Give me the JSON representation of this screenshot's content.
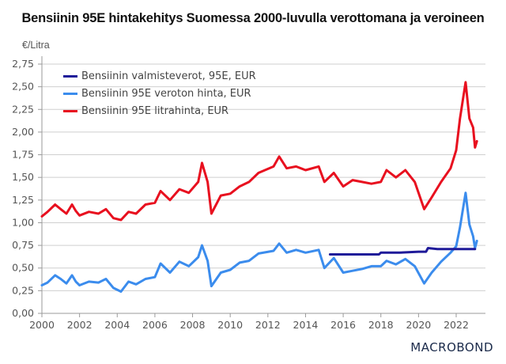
{
  "chart_data": {
    "type": "line",
    "title": "Bensiinin 95E hintakehitys Suomessa 2000-luvulla verottomana ja veroineen",
    "ylabel": "€/Litra",
    "xlabel": "",
    "xlim": [
      2000,
      2023.6
    ],
    "ylim": [
      0,
      2.75
    ],
    "yticks": [
      "0,00",
      "0,25",
      "0,50",
      "0,75",
      "1,00",
      "1,25",
      "1,50",
      "1,75",
      "2,00",
      "2,25",
      "2,50",
      "2,75"
    ],
    "ytick_values": [
      0,
      0.25,
      0.5,
      0.75,
      1.0,
      1.25,
      1.5,
      1.75,
      2.0,
      2.25,
      2.5,
      2.75
    ],
    "xticks": [
      "2000",
      "2002",
      "2004",
      "2006",
      "2008",
      "2010",
      "2012",
      "2014",
      "2016",
      "2018",
      "2020",
      "2022"
    ],
    "xtick_values": [
      2000,
      2002,
      2004,
      2006,
      2008,
      2010,
      2012,
      2014,
      2016,
      2018,
      2020,
      2022
    ],
    "grid": true,
    "legend_position": "top-left",
    "series": [
      {
        "name": "Bensiinin valmisteverot, 95E, EUR",
        "color": "#1f1a99",
        "x": [
          2015.3,
          2016.0,
          2017.0,
          2017.9,
          2018.0,
          2019.0,
          2020.0,
          2020.4,
          2020.5,
          2021.0,
          2022.0,
          2023.0
        ],
        "y": [
          0.65,
          0.65,
          0.65,
          0.65,
          0.67,
          0.67,
          0.68,
          0.68,
          0.72,
          0.71,
          0.71,
          0.71
        ]
      },
      {
        "name": "Bensiinin 95E veroton hinta, EUR",
        "color": "#3b8ced",
        "x": [
          2000.0,
          2000.3,
          2000.7,
          2001.0,
          2001.3,
          2001.6,
          2001.8,
          2002.0,
          2002.5,
          2003.0,
          2003.4,
          2003.8,
          2004.2,
          2004.6,
          2005.0,
          2005.5,
          2006.0,
          2006.3,
          2006.8,
          2007.3,
          2007.8,
          2008.3,
          2008.5,
          2008.8,
          2009.0,
          2009.5,
          2010.0,
          2010.5,
          2011.0,
          2011.5,
          2012.3,
          2012.6,
          2013.0,
          2013.5,
          2014.0,
          2014.7,
          2015.0,
          2015.5,
          2016.0,
          2016.5,
          2017.0,
          2017.5,
          2018.0,
          2018.3,
          2018.8,
          2019.3,
          2019.8,
          2020.3,
          2020.7,
          2021.2,
          2021.7,
          2022.0,
          2022.2,
          2022.5,
          2022.7,
          2022.9,
          2023.0,
          2023.1
        ],
        "y": [
          0.31,
          0.34,
          0.42,
          0.38,
          0.33,
          0.42,
          0.35,
          0.31,
          0.35,
          0.34,
          0.38,
          0.28,
          0.24,
          0.35,
          0.32,
          0.38,
          0.4,
          0.55,
          0.45,
          0.57,
          0.52,
          0.62,
          0.75,
          0.58,
          0.3,
          0.45,
          0.48,
          0.56,
          0.58,
          0.66,
          0.69,
          0.77,
          0.67,
          0.7,
          0.67,
          0.7,
          0.5,
          0.61,
          0.45,
          0.47,
          0.49,
          0.52,
          0.52,
          0.58,
          0.54,
          0.6,
          0.52,
          0.33,
          0.45,
          0.57,
          0.67,
          0.74,
          0.95,
          1.33,
          0.98,
          0.85,
          0.72,
          0.8
        ]
      },
      {
        "name": "Bensiinin 95E litrahinta, EUR",
        "color": "#e8101f",
        "x": [
          2000.0,
          2000.3,
          2000.7,
          2001.0,
          2001.3,
          2001.6,
          2001.8,
          2002.0,
          2002.5,
          2003.0,
          2003.4,
          2003.8,
          2004.2,
          2004.6,
          2005.0,
          2005.5,
          2006.0,
          2006.3,
          2006.8,
          2007.3,
          2007.8,
          2008.3,
          2008.5,
          2008.8,
          2009.0,
          2009.5,
          2010.0,
          2010.5,
          2011.0,
          2011.5,
          2012.3,
          2012.6,
          2013.0,
          2013.5,
          2014.0,
          2014.7,
          2015.0,
          2015.5,
          2016.0,
          2016.5,
          2017.0,
          2017.5,
          2018.0,
          2018.3,
          2018.8,
          2019.3,
          2019.8,
          2020.3,
          2020.7,
          2021.2,
          2021.7,
          2022.0,
          2022.2,
          2022.5,
          2022.7,
          2022.9,
          2023.0,
          2023.1
        ],
        "y": [
          1.07,
          1.12,
          1.2,
          1.15,
          1.1,
          1.2,
          1.13,
          1.08,
          1.12,
          1.1,
          1.15,
          1.05,
          1.03,
          1.12,
          1.1,
          1.2,
          1.22,
          1.35,
          1.25,
          1.37,
          1.33,
          1.45,
          1.66,
          1.45,
          1.1,
          1.3,
          1.32,
          1.4,
          1.45,
          1.55,
          1.62,
          1.73,
          1.6,
          1.62,
          1.58,
          1.62,
          1.45,
          1.55,
          1.4,
          1.47,
          1.45,
          1.43,
          1.45,
          1.58,
          1.5,
          1.58,
          1.45,
          1.15,
          1.28,
          1.45,
          1.6,
          1.8,
          2.15,
          2.55,
          2.15,
          2.05,
          1.83,
          1.9
        ]
      }
    ]
  },
  "branding": {
    "logo_text": "MACROBOND"
  }
}
